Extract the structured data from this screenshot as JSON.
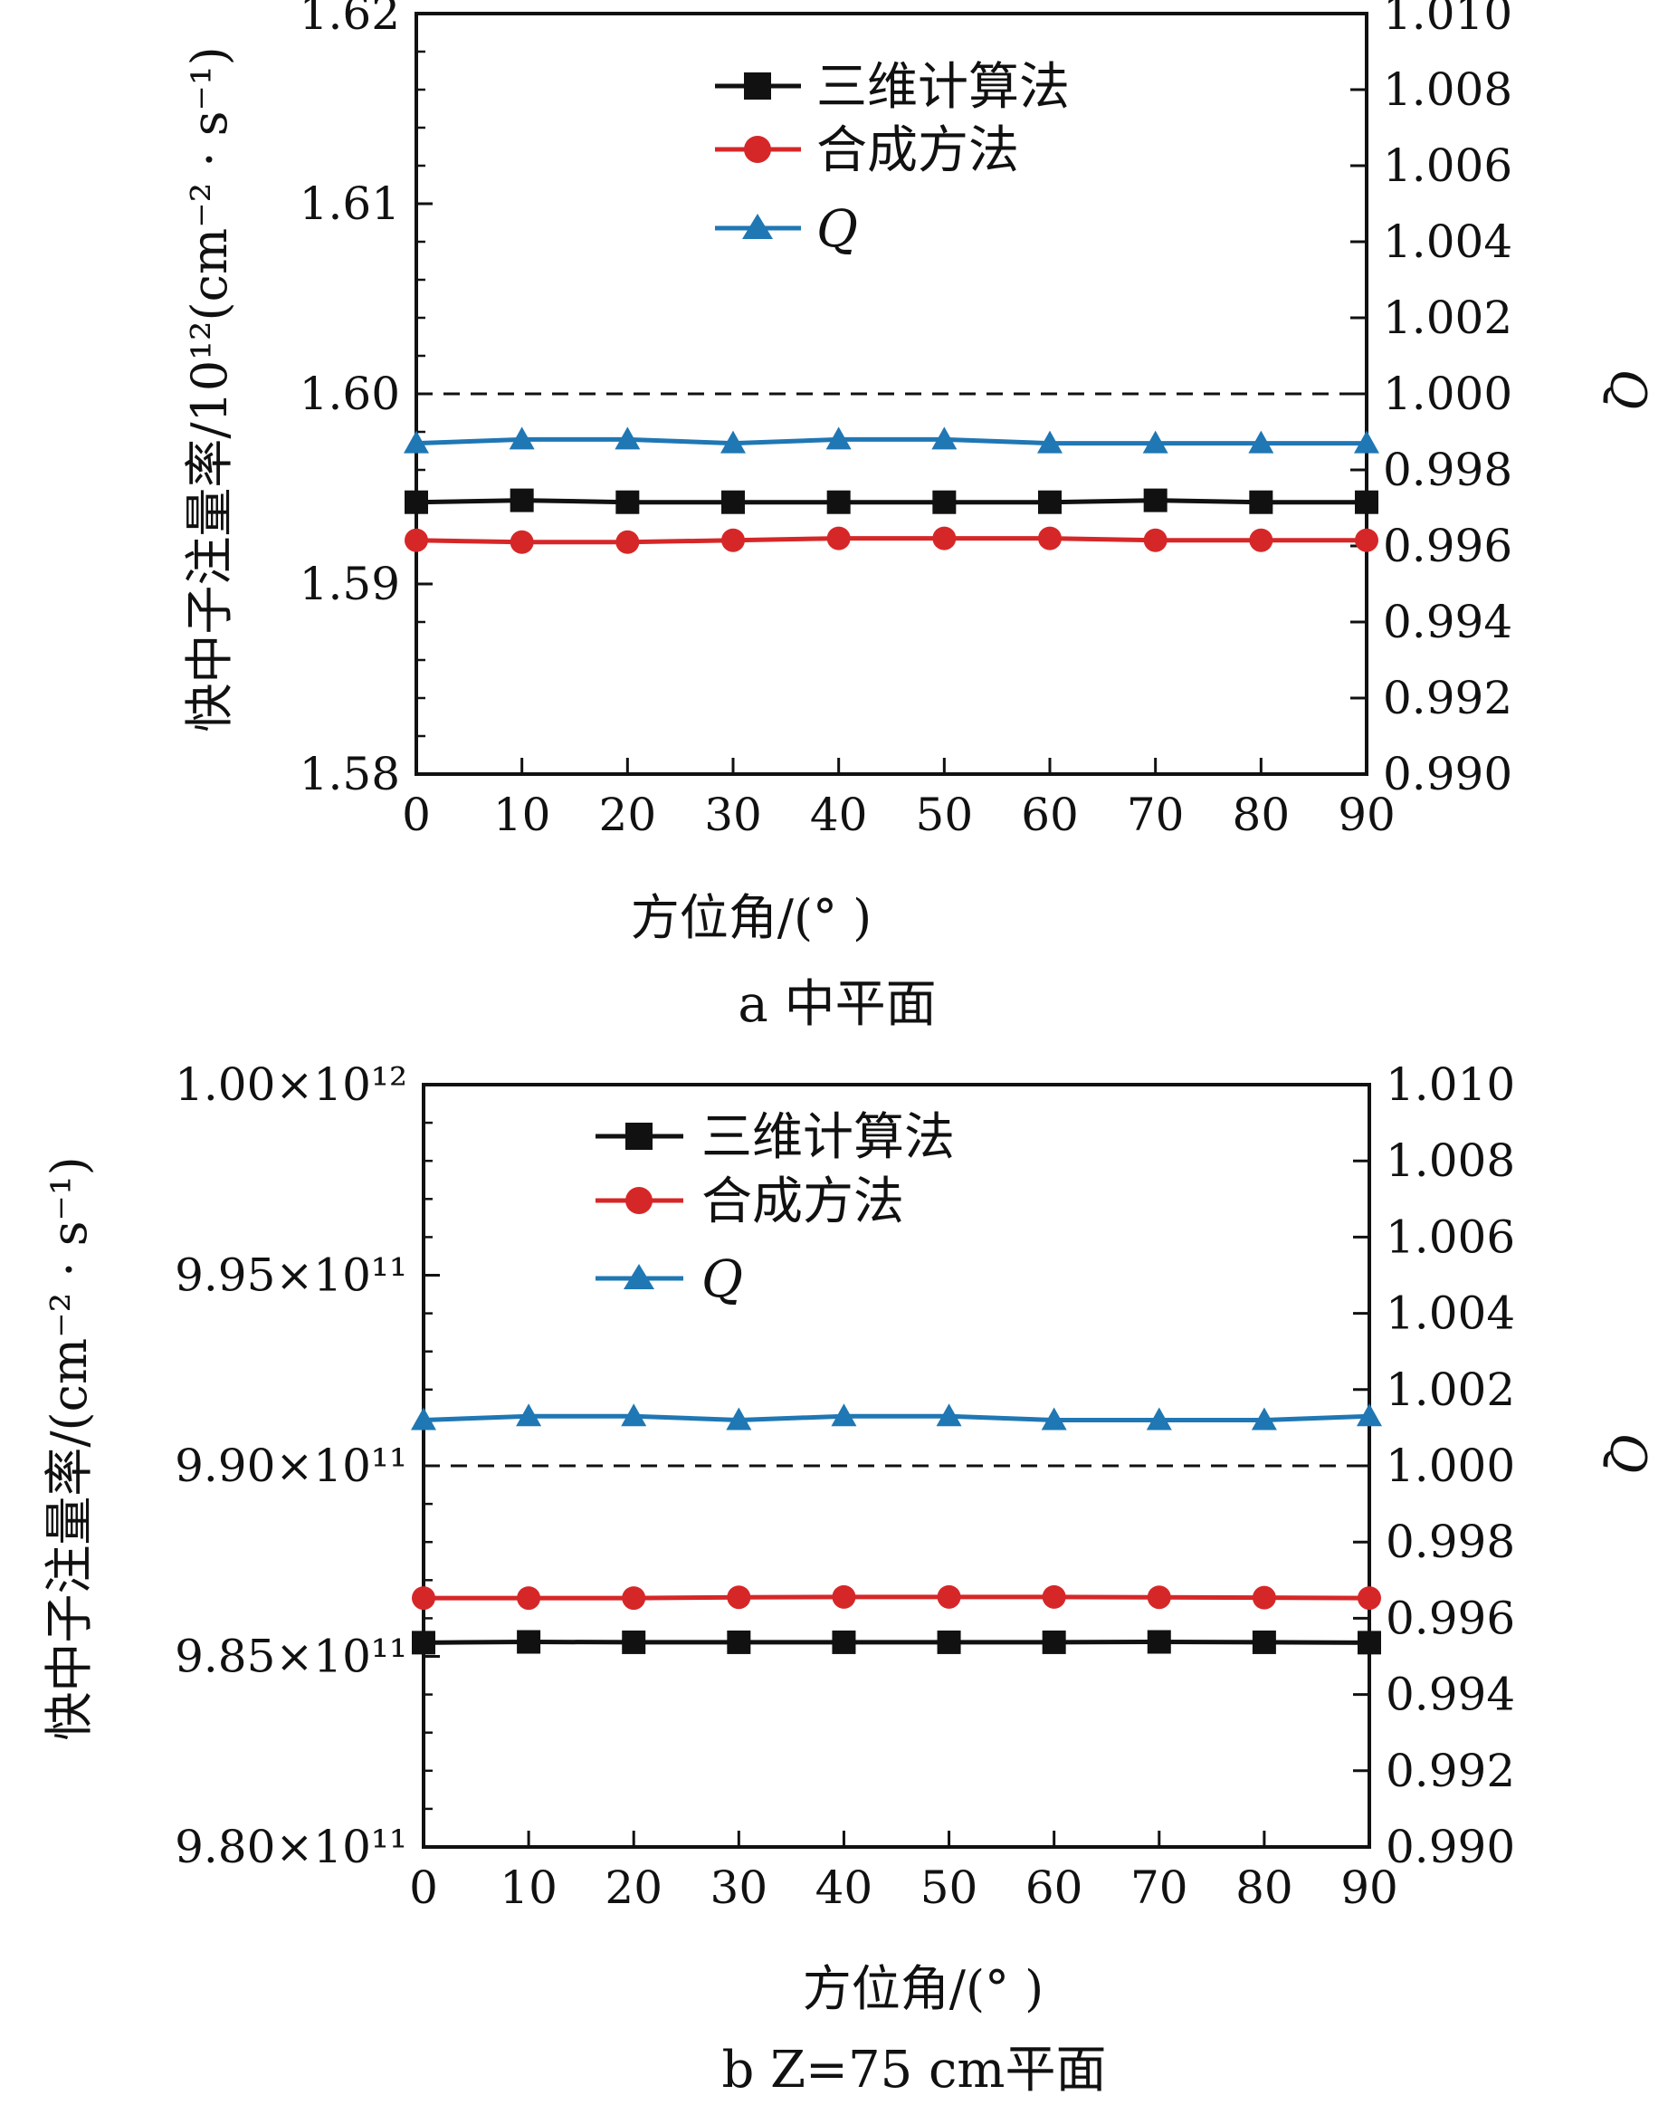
{
  "chart_data": [
    {
      "type": "line",
      "caption": "a  中平面",
      "xlabel": "方位角/(°  )",
      "ylabel": "快中子注量率/10¹²(cm⁻² · s⁻¹)",
      "y2label": "Q",
      "xlim": [
        0,
        90
      ],
      "xticks": [
        "0",
        "10",
        "20",
        "30",
        "40",
        "50",
        "60",
        "70",
        "80",
        "90"
      ],
      "ylim": [
        1.58,
        1.62
      ],
      "yticks": [
        "1.58",
        "1.59",
        "1.60",
        "1.61",
        "1.62"
      ],
      "y2lim": [
        0.99,
        1.01
      ],
      "y2ticks": [
        "0.990",
        "0.992",
        "0.994",
        "0.996",
        "0.998",
        "1.000",
        "1.002",
        "1.004",
        "1.006",
        "1.008",
        "1.010"
      ],
      "reference_line": {
        "axis": "y2",
        "value": 1.0,
        "style": "dashed"
      },
      "legend_position": "top-center",
      "x": [
        0,
        10,
        20,
        30,
        40,
        50,
        60,
        70,
        80,
        90
      ],
      "series": [
        {
          "name": "三维计算法",
          "axis": "y",
          "color": "#111111",
          "marker": "square",
          "values": [
            1.5943,
            1.5944,
            1.5943,
            1.5943,
            1.5943,
            1.5943,
            1.5943,
            1.5944,
            1.5943,
            1.5943
          ]
        },
        {
          "name": "合成方法",
          "axis": "y",
          "color": "#d62728",
          "marker": "circle",
          "values": [
            1.5923,
            1.5922,
            1.5922,
            1.5923,
            1.5924,
            1.5924,
            1.5924,
            1.5923,
            1.5923,
            1.5923
          ]
        },
        {
          "name": "Q",
          "axis": "y2",
          "color": "#1f77b4",
          "marker": "triangle",
          "values": [
            0.9987,
            0.9988,
            0.9988,
            0.9987,
            0.9988,
            0.9988,
            0.9987,
            0.9987,
            0.9987,
            0.9987
          ]
        }
      ]
    },
    {
      "type": "line",
      "caption": "b  Z=75 cm平面",
      "xlabel": "方位角/(°  )",
      "ylabel": "快中子注量率/(cm⁻² · s⁻¹)",
      "y2label": "Q",
      "xlim": [
        0,
        90
      ],
      "xticks": [
        "0",
        "10",
        "20",
        "30",
        "40",
        "50",
        "60",
        "70",
        "80",
        "90"
      ],
      "ylim": [
        980000000000.0,
        1000000000000.0
      ],
      "yticks": [
        "9.80×10¹¹",
        "9.85×10¹¹",
        "9.90×10¹¹",
        "9.95×10¹¹",
        "1.00×10¹²"
      ],
      "y2lim": [
        0.99,
        1.01
      ],
      "y2ticks": [
        "0.990",
        "0.992",
        "0.994",
        "0.996",
        "0.998",
        "1.000",
        "1.002",
        "1.004",
        "1.006",
        "1.008",
        "1.010"
      ],
      "reference_line": {
        "axis": "y2",
        "value": 1.0,
        "style": "dashed"
      },
      "legend_position": "top-center",
      "x": [
        0,
        10,
        20,
        30,
        40,
        50,
        60,
        70,
        80,
        90
      ],
      "series": [
        {
          "name": "三维计算法",
          "axis": "y",
          "color": "#111111",
          "marker": "square",
          "values": [
            985360000000.0,
            985380000000.0,
            985370000000.0,
            985370000000.0,
            985370000000.0,
            985370000000.0,
            985370000000.0,
            985380000000.0,
            985370000000.0,
            985360000000.0
          ]
        },
        {
          "name": "合成方法",
          "axis": "y",
          "color": "#d62728",
          "marker": "circle",
          "values": [
            986530000000.0,
            986530000000.0,
            986530000000.0,
            986550000000.0,
            986560000000.0,
            986560000000.0,
            986560000000.0,
            986550000000.0,
            986540000000.0,
            986530000000.0
          ]
        },
        {
          "name": "Q",
          "axis": "y2",
          "color": "#1f77b4",
          "marker": "triangle",
          "values": [
            1.0012,
            1.0013,
            1.0013,
            1.0012,
            1.0013,
            1.0013,
            1.0012,
            1.0012,
            1.0012,
            1.0013
          ]
        }
      ]
    }
  ]
}
